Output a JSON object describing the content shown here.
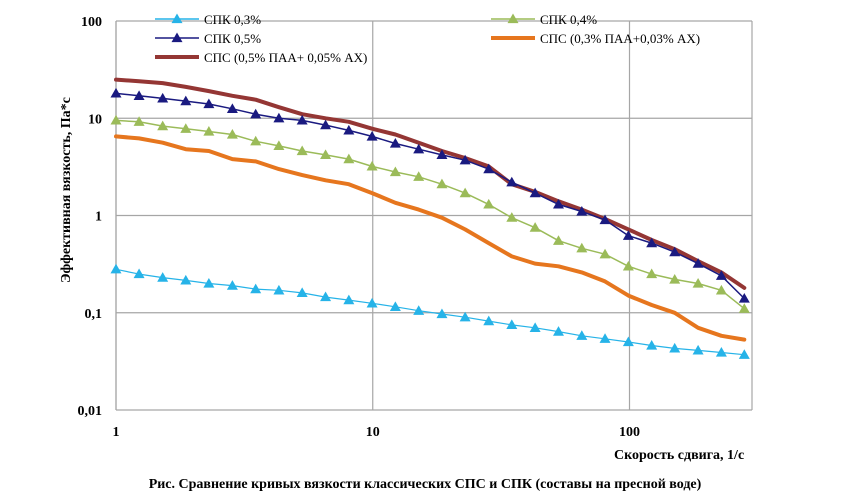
{
  "caption": "Рис. Сравнение кривых вязкости классических СПС и СПК (составы на пресной воде)",
  "chart_data": {
    "type": "line",
    "title": "",
    "xlabel": "Скорость сдвига, 1/с",
    "ylabel": "Эффективная вязкость, Па*с",
    "x_scale": "log",
    "y_scale": "log",
    "xlim": [
      1,
      300
    ],
    "ylim": [
      0.01,
      100
    ],
    "x_ticks": [
      1,
      10,
      100
    ],
    "x_tick_labels": [
      "1",
      "10",
      "100"
    ],
    "y_ticks": [
      0.01,
      0.1,
      1,
      10,
      100
    ],
    "y_tick_labels": [
      "0,01",
      "0,1",
      "1",
      "10",
      "100"
    ],
    "grid": {
      "major": true
    },
    "legend_position": "top",
    "x": [
      1,
      1.23,
      1.52,
      1.87,
      2.3,
      2.84,
      3.5,
      4.31,
      5.31,
      6.55,
      8.07,
      9.94,
      12.25,
      15.1,
      18.6,
      22.9,
      28.3,
      34.8,
      42.9,
      52.9,
      65.2,
      80.3,
      99,
      122,
      150,
      185,
      228,
      280
    ],
    "series": [
      {
        "name": "СПК 0,3%",
        "color": "#26b3e8",
        "marker": "triangle",
        "values": [
          0.28,
          0.25,
          0.23,
          0.215,
          0.2,
          0.19,
          0.175,
          0.17,
          0.16,
          0.145,
          0.135,
          0.125,
          0.115,
          0.105,
          0.097,
          0.09,
          0.082,
          0.075,
          0.07,
          0.064,
          0.058,
          0.054,
          0.05,
          0.046,
          0.043,
          0.041,
          0.039,
          0.037
        ]
      },
      {
        "name": "СПК 0,4%",
        "color": "#9bbb59",
        "marker": "triangle",
        "values": [
          9.5,
          9.2,
          8.3,
          7.8,
          7.3,
          6.8,
          5.8,
          5.2,
          4.6,
          4.2,
          3.8,
          3.2,
          2.8,
          2.5,
          2.1,
          1.7,
          1.3,
          0.95,
          0.75,
          0.55,
          0.46,
          0.4,
          0.3,
          0.25,
          0.22,
          0.2,
          0.17,
          0.11
        ]
      },
      {
        "name": "СПК 0,5%",
        "color": "#1a1a80",
        "marker": "triangle",
        "values": [
          18,
          17,
          16,
          15,
          14,
          12.5,
          11,
          10,
          9.5,
          8.5,
          7.5,
          6.5,
          5.5,
          4.8,
          4.2,
          3.7,
          3,
          2.2,
          1.7,
          1.3,
          1.1,
          0.9,
          0.62,
          0.52,
          0.42,
          0.32,
          0.24,
          0.14
        ]
      },
      {
        "name": "СПС (0,3% ПАА+0,03% АХ)",
        "color": "#e6761e",
        "marker": "none",
        "values": [
          6.5,
          6.2,
          5.6,
          4.8,
          4.6,
          3.8,
          3.6,
          3.0,
          2.6,
          2.3,
          2.1,
          1.7,
          1.35,
          1.15,
          0.95,
          0.72,
          0.52,
          0.38,
          0.32,
          0.3,
          0.26,
          0.21,
          0.15,
          0.12,
          0.1,
          0.07,
          0.058,
          0.053
        ]
      },
      {
        "name": "СПС (0,5% ПАА+ 0,05% АХ)",
        "color": "#943634",
        "marker": "none",
        "values": [
          25,
          24,
          23,
          21,
          19,
          17,
          15.5,
          13,
          11,
          10,
          9.2,
          7.8,
          6.8,
          5.6,
          4.6,
          3.9,
          3.2,
          2.1,
          1.75,
          1.4,
          1.15,
          0.92,
          0.72,
          0.56,
          0.45,
          0.34,
          0.26,
          0.18
        ]
      }
    ]
  }
}
